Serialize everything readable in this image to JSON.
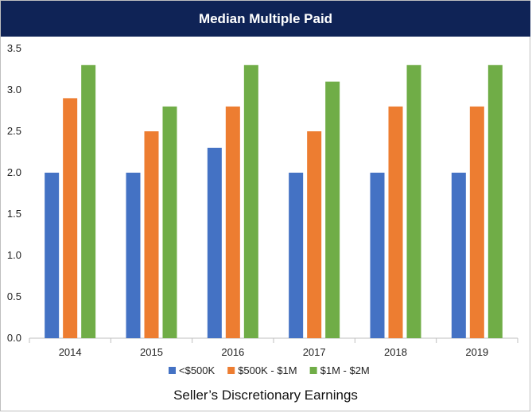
{
  "title": "Median Multiple Paid",
  "chart_data": {
    "type": "bar",
    "title": "Median Multiple Paid",
    "xlabel": "Seller’s Discretionary Earnings",
    "ylabel": "",
    "categories": [
      "2014",
      "2015",
      "2016",
      "2017",
      "2018",
      "2019"
    ],
    "series": [
      {
        "name": "<$500K",
        "color": "#4472c4",
        "values": [
          2.0,
          2.0,
          2.3,
          2.0,
          2.0,
          2.0
        ]
      },
      {
        "name": "$500K - $1M",
        "color": "#ed7d31",
        "values": [
          2.9,
          2.5,
          2.8,
          2.5,
          2.8,
          2.8
        ]
      },
      {
        "name": "$1M - $2M",
        "color": "#70ad47",
        "values": [
          3.3,
          2.8,
          3.3,
          3.1,
          3.3,
          3.3
        ]
      }
    ],
    "ylim": [
      0,
      3.5
    ],
    "yticks": [
      "0.0",
      "0.5",
      "1.0",
      "1.5",
      "2.0",
      "2.5",
      "3.0",
      "3.5"
    ],
    "grid": false,
    "legend_position": "bottom"
  }
}
